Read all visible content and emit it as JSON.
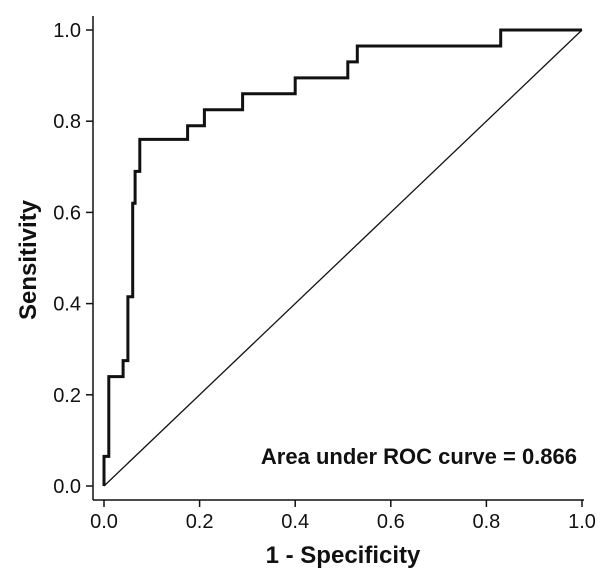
{
  "chart_data": {
    "type": "line",
    "title": "",
    "xlabel": "1 - Specificity",
    "ylabel": "Sensitivity",
    "xlim": [
      0,
      1
    ],
    "ylim": [
      0,
      1
    ],
    "xticks": [
      "0.0",
      "0.2",
      "0.4",
      "0.6",
      "0.8",
      "1.0"
    ],
    "yticks": [
      "0.0",
      "0.2",
      "0.4",
      "0.6",
      "0.8",
      "1.0"
    ],
    "grid": false,
    "annotation": "Area under ROC curve = 0.866",
    "series": [
      {
        "role": "roc-curve",
        "style": "step",
        "x": [
          0.0,
          0.0,
          0.01,
          0.01,
          0.04,
          0.04,
          0.05,
          0.05,
          0.06,
          0.06,
          0.065,
          0.065,
          0.075,
          0.075,
          0.175,
          0.175,
          0.21,
          0.21,
          0.29,
          0.29,
          0.4,
          0.4,
          0.51,
          0.51,
          0.53,
          0.53,
          0.83,
          0.83,
          1.0
        ],
        "y": [
          0.0,
          0.065,
          0.065,
          0.24,
          0.24,
          0.275,
          0.275,
          0.415,
          0.415,
          0.62,
          0.62,
          0.69,
          0.69,
          0.76,
          0.76,
          0.79,
          0.79,
          0.825,
          0.825,
          0.86,
          0.86,
          0.895,
          0.895,
          0.93,
          0.93,
          0.965,
          0.965,
          1.0,
          1.0
        ],
        "color": "#111111"
      },
      {
        "role": "reference-diagonal",
        "style": "line",
        "x": [
          0.0,
          1.0
        ],
        "y": [
          0.0,
          1.0
        ],
        "color": "#111111"
      }
    ]
  }
}
